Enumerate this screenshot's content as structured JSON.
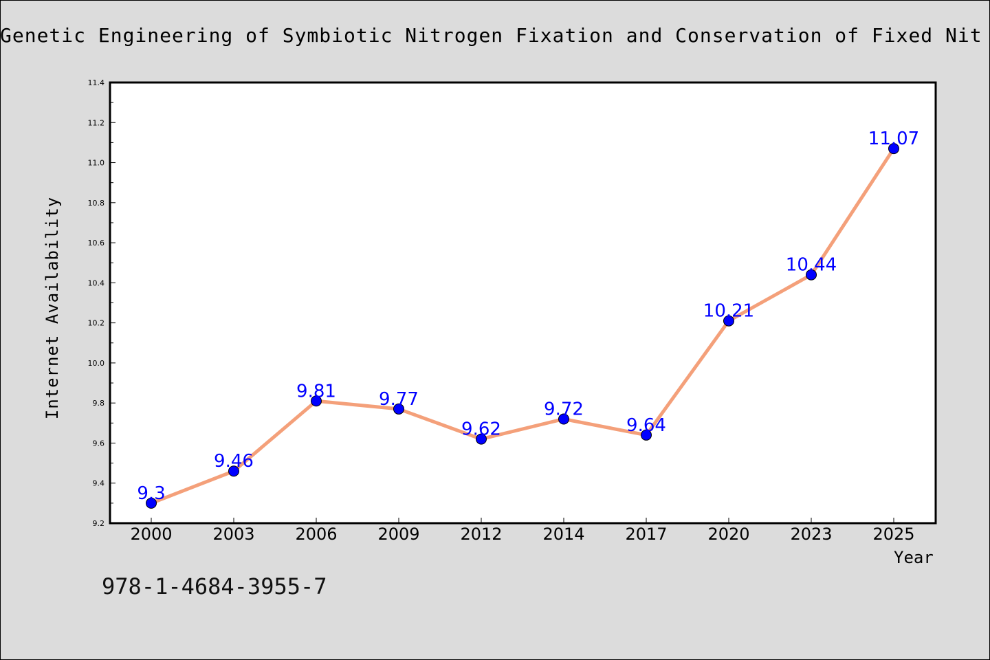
{
  "chart_data": {
    "type": "line",
    "title": "Genetic Engineering of Symbiotic Nitrogen Fixation and Conservation of Fixed Nit",
    "xlabel": "Year",
    "ylabel": "Internet Availability",
    "categories": [
      "2000",
      "2003",
      "2006",
      "2009",
      "2012",
      "2014",
      "2017",
      "2020",
      "2023",
      "2025"
    ],
    "series": [
      {
        "values": [
          9.3,
          9.46,
          9.81,
          9.77,
          9.62,
          9.72,
          9.64,
          10.21,
          10.44,
          11.07
        ],
        "line_color": "#f4a07a",
        "marker_color": "#0000ff"
      }
    ],
    "data_labels": [
      "9.3",
      "9.46",
      "9.81",
      "9.77",
      "9.62",
      "9.72",
      "9.64",
      "10.21",
      "10.44",
      "11.07"
    ],
    "ylim": [
      9.2,
      11.4
    ],
    "yticks": [
      "9.2",
      "9.4",
      "9.6",
      "9.8",
      "10.0",
      "10.2",
      "10.4",
      "10.6",
      "10.8",
      "11.0",
      "11.2",
      "11.4"
    ],
    "grid": false,
    "legend": "none"
  },
  "footer_text": "978-1-4684-3955-7"
}
